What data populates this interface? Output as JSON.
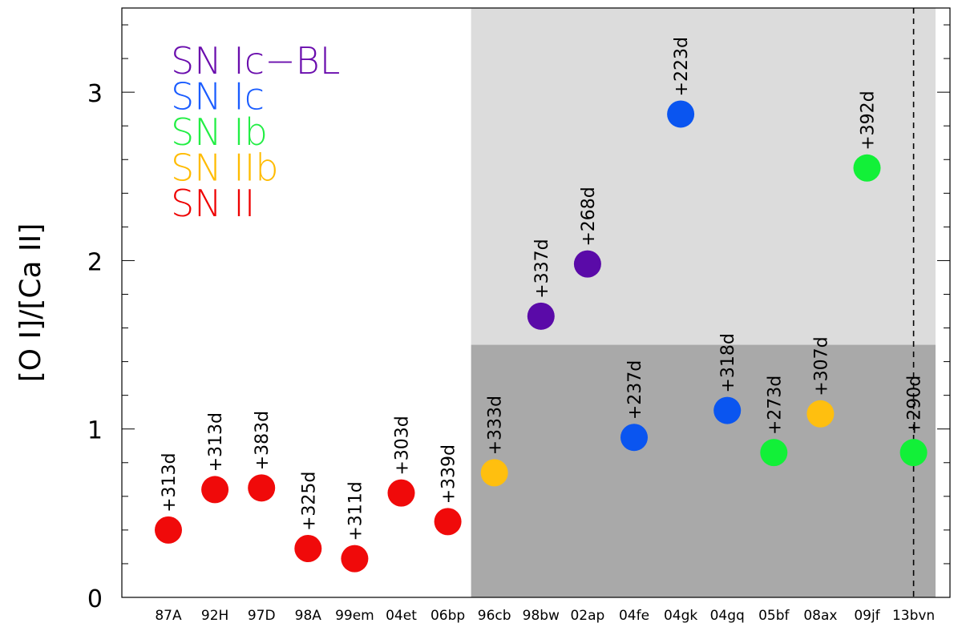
{
  "chart_data": {
    "type": "scatter",
    "xlabel": "",
    "ylabel": "[O I]/[Ca II]",
    "ylim": [
      0,
      3.5
    ],
    "yticks": [
      0,
      1,
      2,
      3
    ],
    "categories": [
      "87A",
      "92H",
      "97D",
      "98A",
      "99em",
      "04et",
      "06bp",
      "96cb",
      "98bw",
      "02ap",
      "04fe",
      "04gk",
      "04gq",
      "05bf",
      "08ax",
      "09jf",
      "13bvn"
    ],
    "points": [
      {
        "category": "87A",
        "value": 0.4,
        "type": "SN II",
        "label": "+313d"
      },
      {
        "category": "92H",
        "value": 0.64,
        "type": "SN II",
        "label": "+313d"
      },
      {
        "category": "97D",
        "value": 0.65,
        "type": "SN II",
        "label": "+383d"
      },
      {
        "category": "98A",
        "value": 0.29,
        "type": "SN II",
        "label": "+325d"
      },
      {
        "category": "99em",
        "value": 0.23,
        "type": "SN II",
        "label": "+311d"
      },
      {
        "category": "04et",
        "value": 0.62,
        "type": "SN II",
        "label": "+303d"
      },
      {
        "category": "06bp",
        "value": 0.45,
        "type": "SN II",
        "label": "+339d"
      },
      {
        "category": "96cb",
        "value": 0.74,
        "type": "SN IIb",
        "label": "+333d"
      },
      {
        "category": "98bw",
        "value": 1.67,
        "type": "SN Ic-BL",
        "label": "+337d"
      },
      {
        "category": "02ap",
        "value": 1.98,
        "type": "SN Ic-BL",
        "label": "+268d"
      },
      {
        "category": "04fe",
        "value": 0.95,
        "type": "SN Ic",
        "label": "+237d"
      },
      {
        "category": "04gk",
        "value": 2.87,
        "type": "SN Ic",
        "label": "+223d"
      },
      {
        "category": "04gq",
        "value": 1.11,
        "type": "SN Ic",
        "label": "+318d"
      },
      {
        "category": "05bf",
        "value": 0.86,
        "type": "SN Ib",
        "label": "+273d"
      },
      {
        "category": "08ax",
        "value": 1.09,
        "type": "SN IIb",
        "label": "+307d"
      },
      {
        "category": "09jf",
        "value": 2.55,
        "type": "SN Ib",
        "label": "+392d"
      },
      {
        "category": "13bvn",
        "value": 0.86,
        "type": "SN Ib",
        "label": "+290d"
      }
    ],
    "legend": [
      {
        "name": "SN Ic−BL",
        "color": "#6a0dad"
      },
      {
        "name": "SN Ic",
        "color": "#1a5cff"
      },
      {
        "name": "SN Ib",
        "color": "#22ee44"
      },
      {
        "name": "SN IIb",
        "color": "#ffbb00"
      },
      {
        "name": "SN II",
        "color": "#ee0000"
      }
    ],
    "type_colors": {
      "SN Ic-BL": "#5a0aa8",
      "SN Ic": "#0a55f0",
      "SN Ib": "#12f038",
      "SN IIb": "#ffbf0f",
      "SN II": "#f00a0a"
    },
    "shaded_regions": [
      {
        "from_category": "96cb",
        "to_category": "13bvn",
        "y_from": 1.5,
        "y_to": 3.5,
        "color": "#dcdcdc"
      },
      {
        "from_category": "96cb",
        "to_category": "13bvn",
        "y_from": 0,
        "y_to": 1.5,
        "color": "#a9a9a9"
      }
    ],
    "vertical_dashed_line_category": "13bvn",
    "legend_position": "top-left",
    "grid": false
  }
}
